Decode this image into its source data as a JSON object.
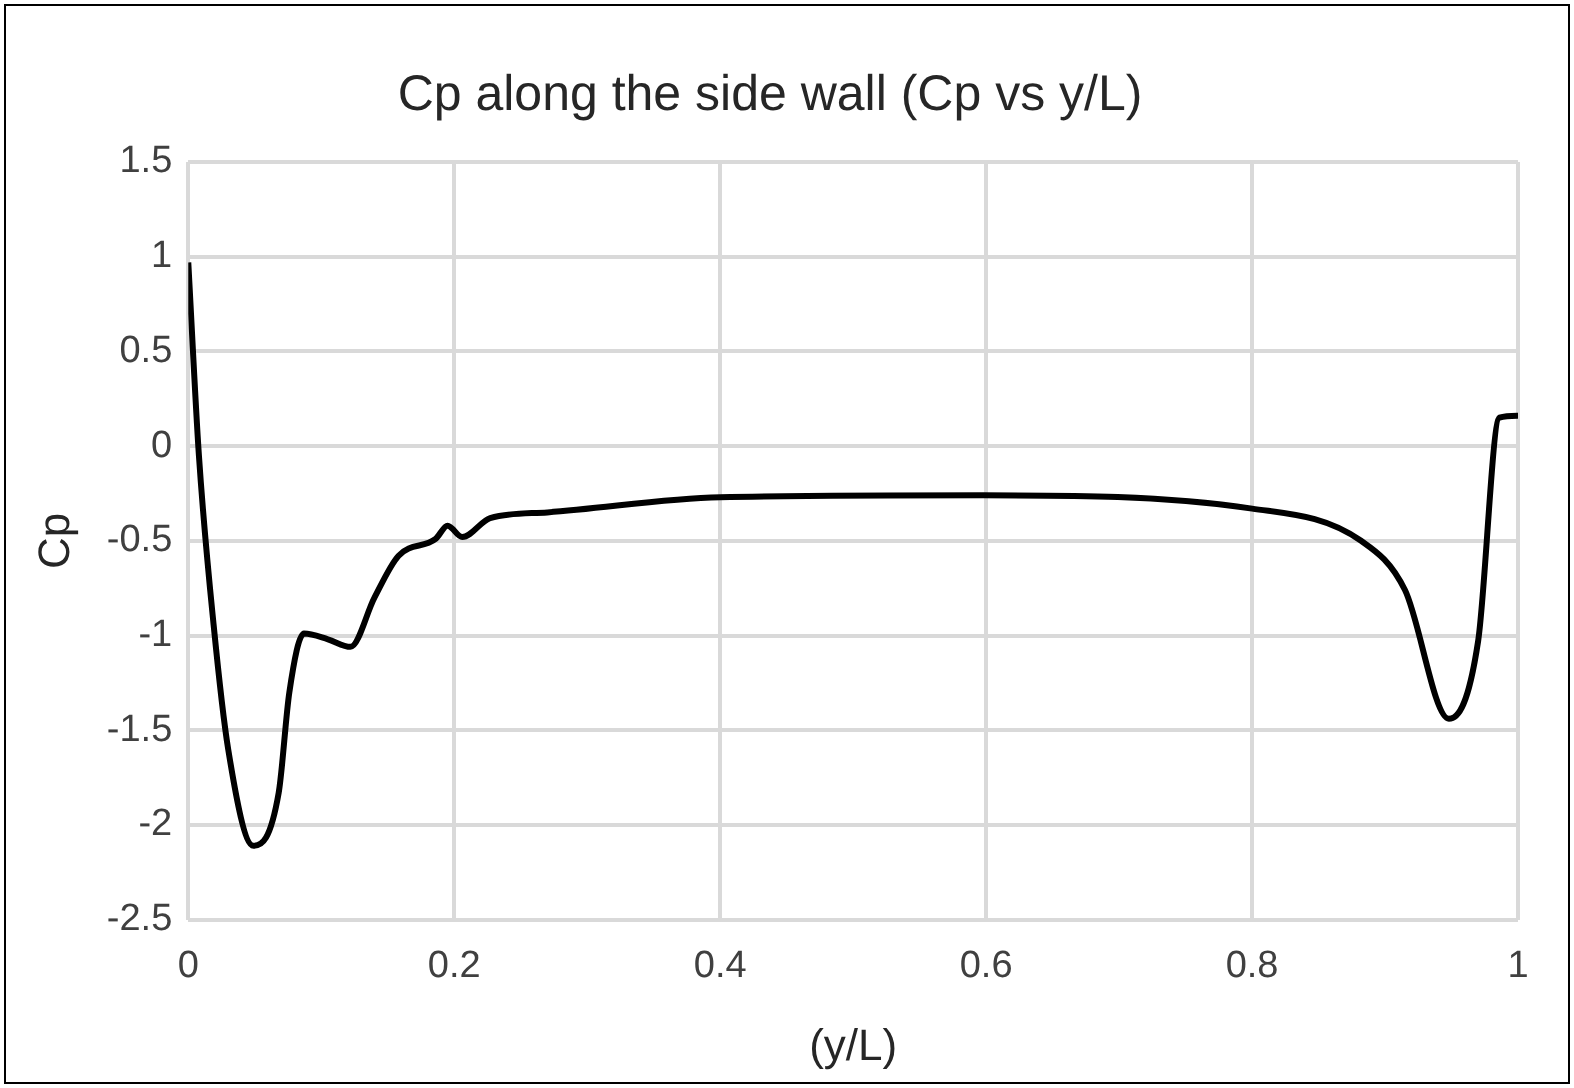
{
  "chart_data": {
    "type": "line",
    "title": "Cp along the side wall (Cp vs y/L)",
    "xlabel": "(y/L)",
    "ylabel": "Cp",
    "xlim": [
      0,
      1
    ],
    "xticks": [
      0,
      0.2,
      0.4,
      0.6,
      0.8,
      1
    ],
    "ylim": [
      -2.5,
      1.5
    ],
    "yticks": [
      -2.5,
      -2,
      -1.5,
      -1,
      -0.5,
      0,
      0.5,
      1,
      1.5
    ],
    "grid": true,
    "marker": "none",
    "line_style": "solid",
    "series": [
      {
        "color": "#000000",
        "x": [
          0,
          0.008,
          0.019,
          0.03,
          0.049,
          0.068,
          0.076,
          0.087,
          0.105,
          0.122,
          0.14,
          0.158,
          0.186,
          0.195,
          0.206,
          0.227,
          0.27,
          0.4,
          0.598,
          0.8,
          0.882,
          0.915,
          0.948,
          0.97,
          0.986,
          1.0
        ],
        "values": [
          0.97,
          -0.05,
          -0.94,
          -1.6,
          -2.11,
          -1.83,
          -1.3,
          -0.99,
          -1.02,
          -1.06,
          -0.8,
          -0.58,
          -0.49,
          -0.42,
          -0.48,
          -0.38,
          -0.35,
          -0.27,
          -0.26,
          -0.33,
          -0.5,
          -0.76,
          -1.44,
          -1.03,
          0.15,
          0.16
        ]
      }
    ]
  }
}
